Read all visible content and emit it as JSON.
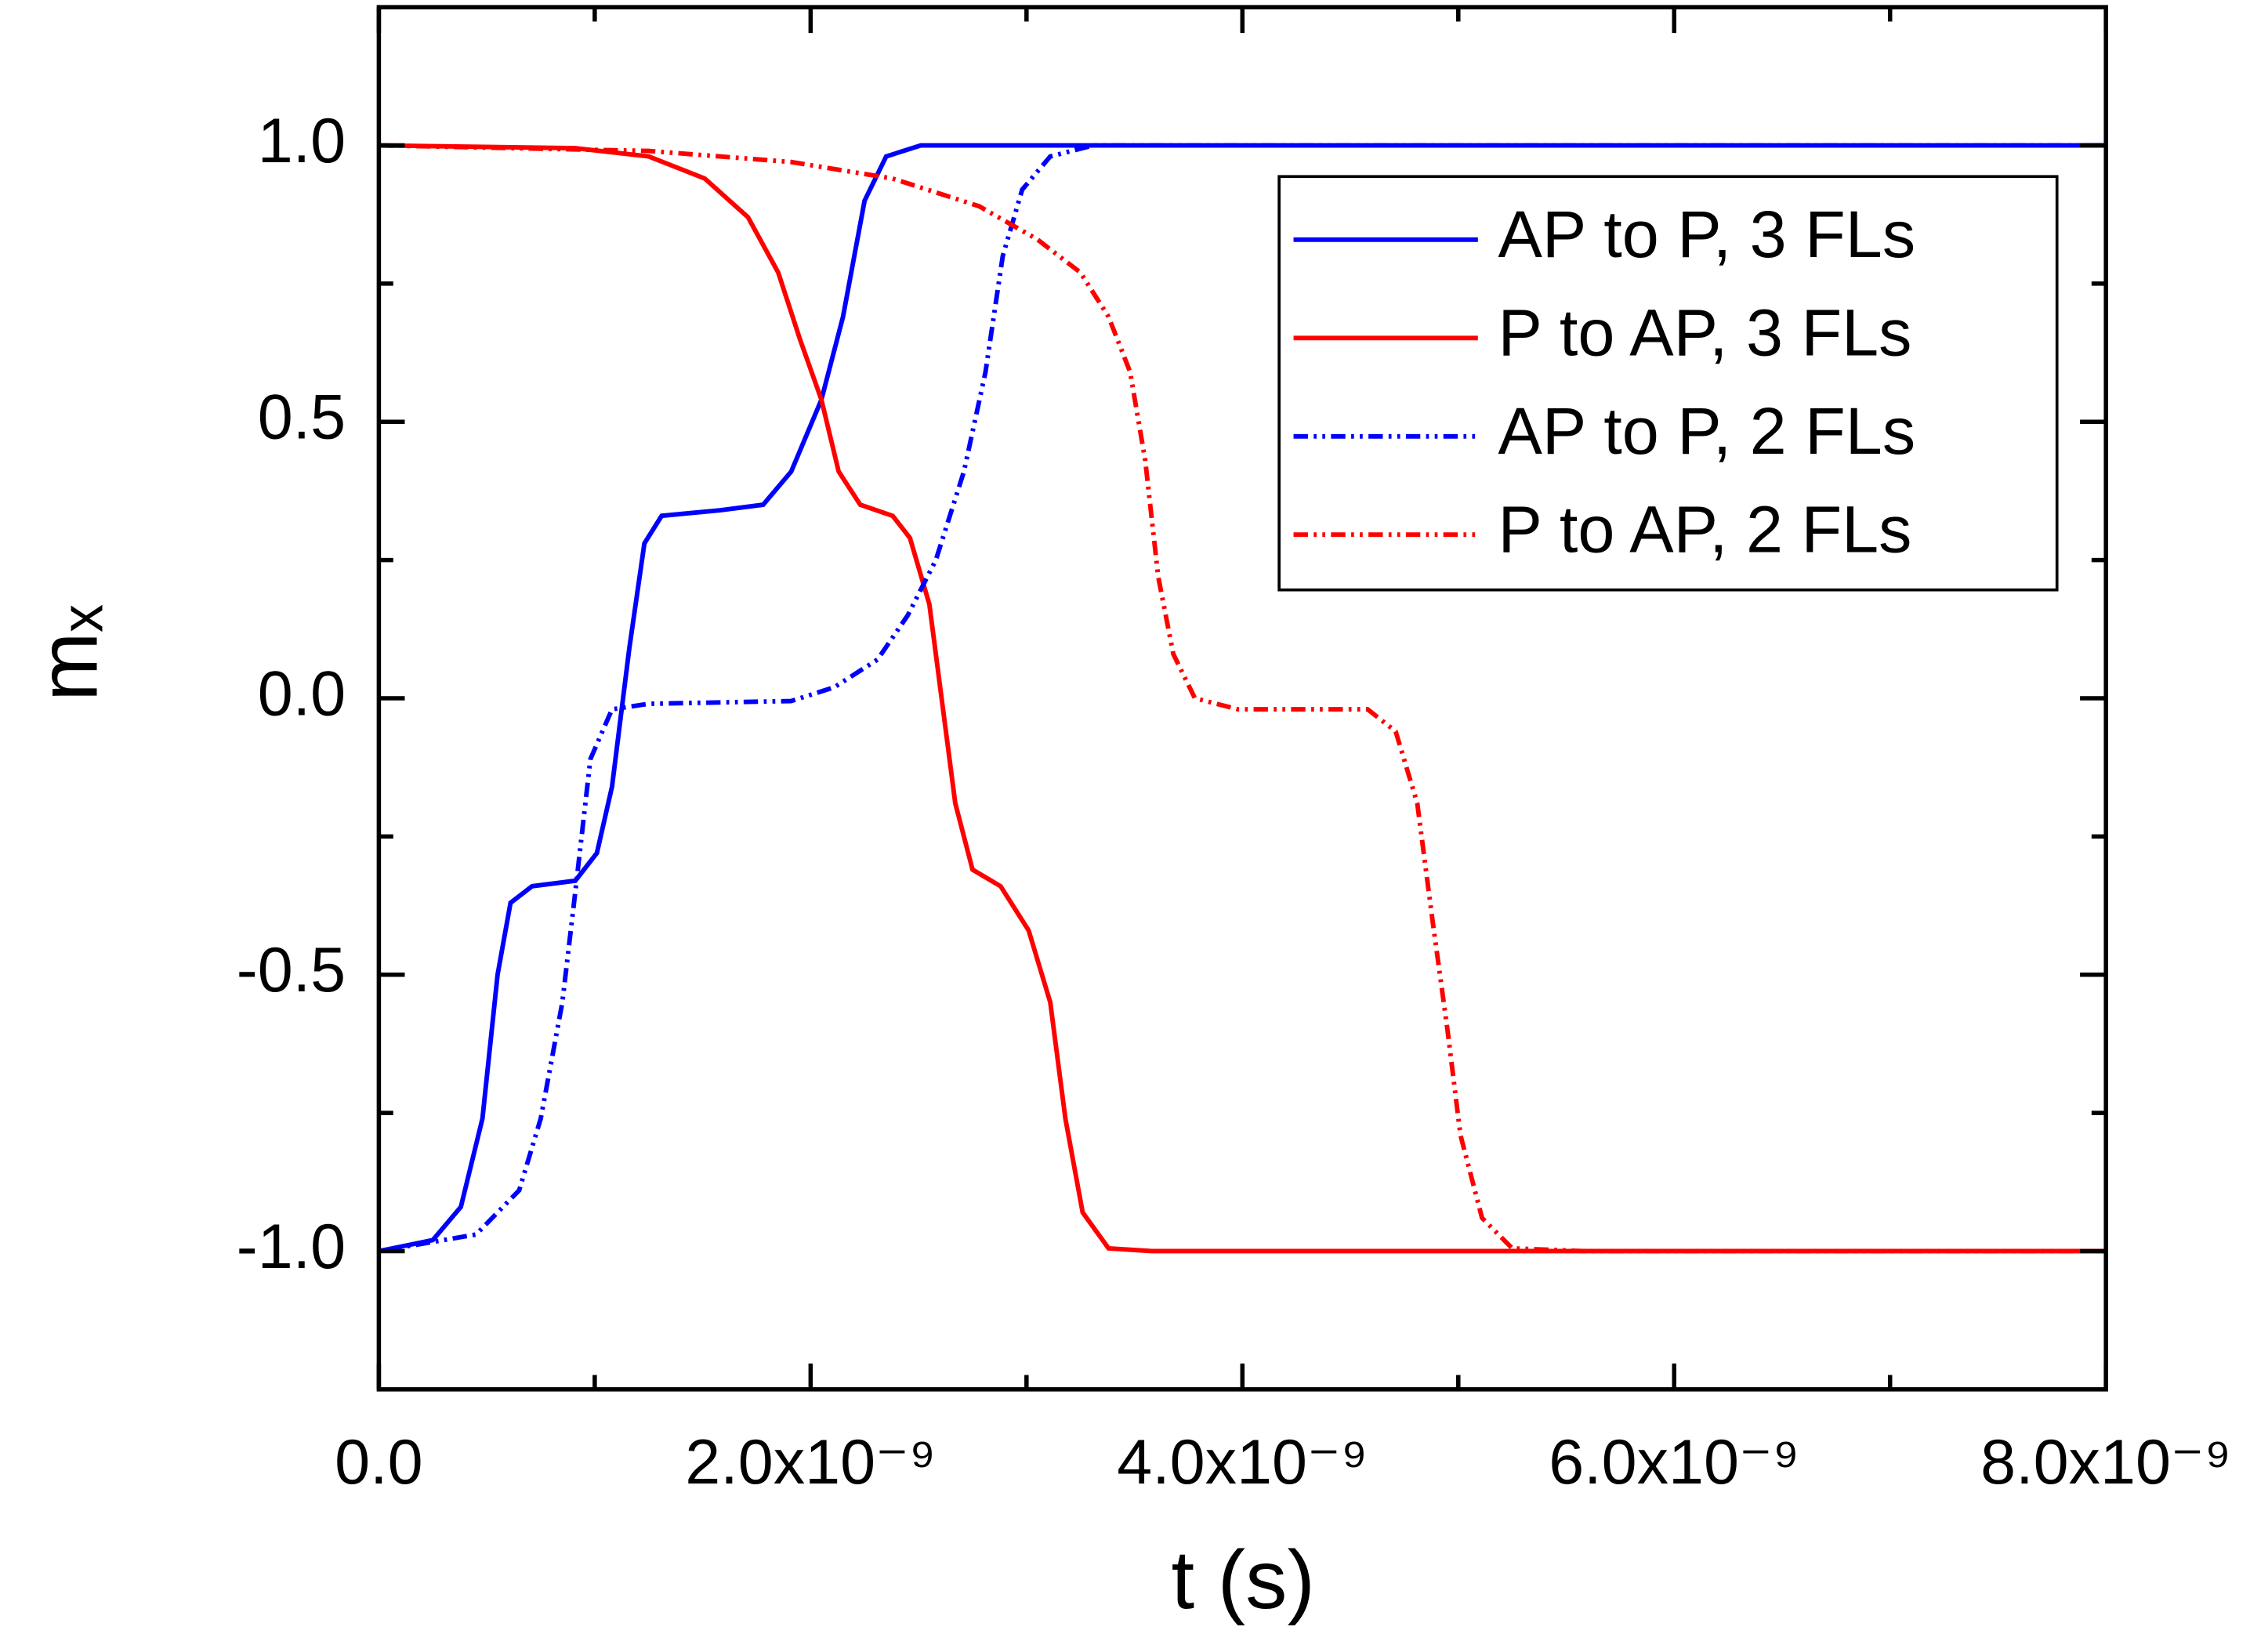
{
  "chart_data": {
    "type": "line",
    "xlabel": "t (s)",
    "ylabel": "mₓ",
    "xlim": [
      0,
      8e-09
    ],
    "ylim": [
      -1.25,
      1.25
    ],
    "xticks": [
      {
        "value": 0,
        "label": "0.0"
      },
      {
        "value": 2e-09,
        "label": "2.0x10⁻⁹"
      },
      {
        "value": 4e-09,
        "label": "4.0x10⁻⁹"
      },
      {
        "value": 6e-09,
        "label": "6.0x10⁻⁹"
      },
      {
        "value": 8e-09,
        "label": "8.0x10⁻⁹"
      }
    ],
    "xminorticks": [
      1e-09,
      3e-09,
      5e-09,
      7e-09
    ],
    "yticks": [
      {
        "value": -1,
        "label": "-1.0"
      },
      -0.5,
      {
        "value": 0,
        "label": "0.0"
      },
      0.5,
      {
        "value": 1,
        "label": "1.0"
      }
    ],
    "yminorticks": [
      -0.75,
      -0.25,
      0.25,
      0.75
    ],
    "legend": "upper right",
    "series": [
      {
        "name": "AP to P, 3 FLs",
        "color": "#0000ff",
        "linestyle": "solid",
        "x": [
          0,
          2.5e-10,
          3.8e-10,
          4.8e-10,
          5.5e-10,
          6.1e-10,
          7.1e-10,
          9.1e-10,
          1.01e-09,
          1.08e-09,
          1.16e-09,
          1.23e-09,
          1.31e-09,
          1.58e-09,
          1.78e-09,
          1.91e-09,
          2.05e-09,
          2.15e-09,
          2.25e-09,
          2.35e-09,
          2.51e-09,
          8e-09
        ],
        "values": [
          -1,
          -0.98,
          -0.92,
          -0.76,
          -0.5,
          -0.37,
          -0.34,
          -0.33,
          -0.28,
          -0.16,
          0.09,
          0.28,
          0.33,
          0.34,
          0.35,
          0.41,
          0.54,
          0.69,
          0.9,
          0.98,
          1,
          1
        ]
      },
      {
        "name": "P to AP, 3 FLs",
        "color": "#ff0000",
        "linestyle": "solid",
        "x": [
          0,
          9.1e-10,
          1.25e-09,
          1.51e-09,
          1.71e-09,
          1.85e-09,
          1.95e-09,
          2.05e-09,
          2.13e-09,
          2.23e-09,
          2.38e-09,
          2.46e-09,
          2.55e-09,
          2.61e-09,
          2.67e-09,
          2.75e-09,
          2.88e-09,
          3.01e-09,
          3.11e-09,
          3.18e-09,
          3.26e-09,
          3.38e-09,
          3.58e-09,
          8e-09
        ],
        "values": [
          1,
          0.995,
          0.98,
          0.94,
          0.87,
          0.77,
          0.65,
          0.54,
          0.41,
          0.35,
          0.33,
          0.29,
          0.17,
          -0.01,
          -0.19,
          -0.31,
          -0.34,
          -0.42,
          -0.55,
          -0.76,
          -0.93,
          -0.995,
          -1,
          -1
        ]
      },
      {
        "name": "AP to P, 2 FLs",
        "color": "#0000ff",
        "linestyle": "dashdotdot",
        "x": [
          0,
          4.5e-10,
          6.5e-10,
          7.5e-10,
          8.5e-10,
          9.1e-10,
          9.8e-10,
          1.08e-09,
          1.25e-09,
          1.91e-09,
          2.11e-09,
          2.31e-09,
          2.45e-09,
          2.58e-09,
          2.71e-09,
          2.81e-09,
          2.89e-09,
          2.98e-09,
          3.11e-09,
          3.31e-09,
          8e-09
        ],
        "values": [
          -1,
          -0.97,
          -0.89,
          -0.76,
          -0.55,
          -0.35,
          -0.11,
          -0.02,
          -0.01,
          -0.005,
          0.02,
          0.07,
          0.15,
          0.25,
          0.41,
          0.59,
          0.8,
          0.92,
          0.98,
          1,
          1
        ]
      },
      {
        "name": "P to AP, 2 FLs",
        "color": "#ff0000",
        "linestyle": "dashdotdot",
        "x": [
          0,
          1.25e-09,
          1.91e-09,
          2.38e-09,
          2.78e-09,
          3.05e-09,
          3.25e-09,
          3.38e-09,
          3.48e-09,
          3.55e-09,
          3.61e-09,
          3.68e-09,
          3.78e-09,
          3.98e-09,
          4.58e-09,
          4.71e-09,
          4.81e-09,
          4.88e-09,
          4.95e-09,
          5.01e-09,
          5.11e-09,
          5.25e-09,
          5.58e-09,
          8e-09
        ],
        "values": [
          1,
          0.99,
          0.97,
          0.94,
          0.89,
          0.83,
          0.77,
          0.69,
          0.59,
          0.43,
          0.22,
          0.08,
          0,
          -0.02,
          -0.02,
          -0.06,
          -0.19,
          -0.4,
          -0.6,
          -0.79,
          -0.94,
          -0.995,
          -1,
          -1
        ]
      }
    ]
  }
}
